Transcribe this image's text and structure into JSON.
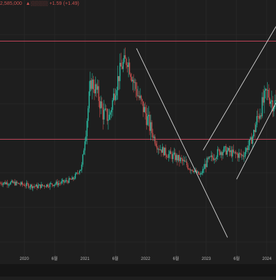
{
  "legend": {
    "line1": "2,585,000",
    "line2": "▲░░░░░ +1.59 (+1.49)"
  },
  "x_axis": {
    "labels": [
      "2020",
      "6월",
      "2021",
      "6월",
      "2022",
      "6월",
      "2023",
      "6월",
      "2024"
    ]
  },
  "colors": {
    "background": "#1e1e1e",
    "grid": "#2c2c2c",
    "resistance_line": "#c04458",
    "trend_line": "#d8d8d8",
    "up_candle": "#2bbfa4",
    "down_candle": "#c9514f"
  },
  "chart_data": {
    "type": "line",
    "x": [
      2019.6,
      2019.8,
      2020.0,
      2020.2,
      2020.4,
      2020.6,
      2020.8,
      2020.95,
      2021.1,
      2021.2,
      2021.3,
      2021.4,
      2021.5,
      2021.6,
      2021.7,
      2021.8,
      2021.9,
      2022.0,
      2022.1,
      2022.2,
      2022.35,
      2022.5,
      2022.6,
      2022.75,
      2022.9,
      2023.0,
      2023.1,
      2023.2,
      2023.3,
      2023.45,
      2023.6,
      2023.75,
      2023.85,
      2024.0,
      2024.1
    ],
    "series": [
      {
        "values": [
          22,
          22,
          21,
          20,
          21,
          22,
          24,
          31,
          78,
          72,
          60,
          58,
          74,
          86,
          90,
          78,
          68,
          60,
          50,
          42,
          38,
          36,
          34,
          30,
          26,
          33,
          36,
          39,
          40,
          38,
          37,
          46,
          58,
          72,
          66
        ]
      }
    ],
    "horizontal_levels": [
      100,
      46
    ],
    "trend_lines": [
      {
        "from": [
          2021.85,
          96
        ],
        "to": [
          2023.35,
          -8
        ]
      },
      {
        "from": [
          2022.95,
          40
        ],
        "to": [
          2024.15,
          108
        ]
      },
      {
        "from": [
          2023.5,
          24
        ],
        "to": [
          2024.15,
          66
        ]
      }
    ],
    "xlim": [
      2019.6,
      2024.15
    ],
    "ylim": [
      -20,
      115
    ],
    "grid": true
  }
}
